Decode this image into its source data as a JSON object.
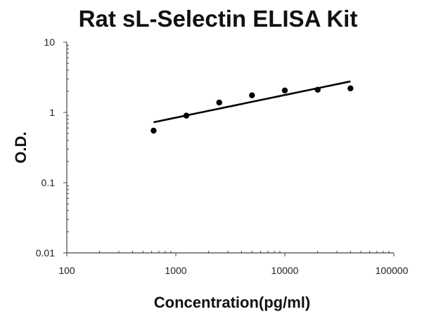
{
  "chart_data": {
    "type": "scatter",
    "title": "Rat sL-Selectin ELISA Kit",
    "xlabel": "Concentration(pg/ml)",
    "ylabel": "O.D.",
    "x_scale": "log",
    "y_scale": "log",
    "xlim": [
      100,
      100000
    ],
    "ylim": [
      0.01,
      10
    ],
    "x_ticks": [
      "100",
      "1000",
      "10000",
      "100000"
    ],
    "y_ticks": [
      "0.01",
      "0.1",
      "1",
      "10"
    ],
    "grid": false,
    "series": [
      {
        "x": [
          625,
          1250,
          2500,
          5000,
          10000,
          20000,
          40000
        ],
        "y": [
          0.55,
          0.9,
          1.38,
          1.75,
          2.05,
          2.1,
          2.2
        ],
        "marker": "filled-circle",
        "color": "#000000",
        "fit_line": "power trendline"
      }
    ]
  }
}
